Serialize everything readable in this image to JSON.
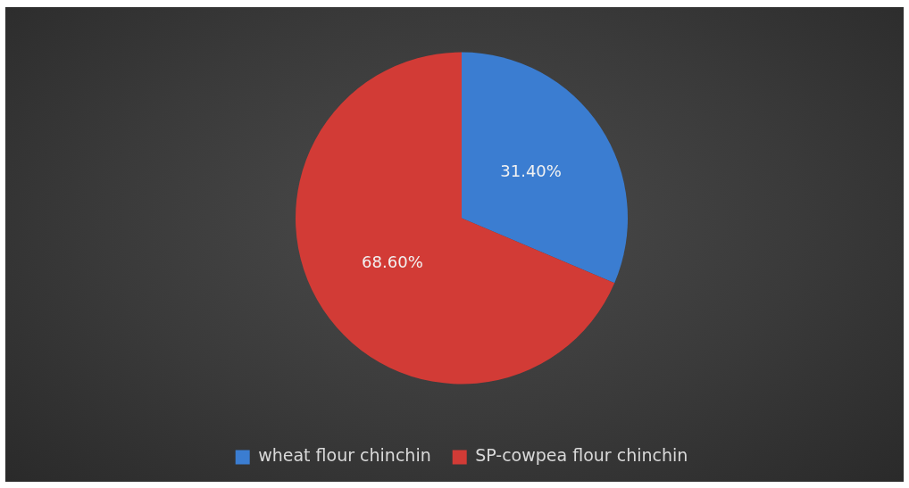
{
  "chart_data": {
    "type": "pie",
    "categories": [
      "wheat flour chinchin",
      "SP-cowpea flour chinchin"
    ],
    "values": [
      31.4,
      68.6
    ],
    "colors": [
      "#3b7dd1",
      "#d23b36"
    ],
    "value_labels": [
      "31.40%",
      "68.60%"
    ],
    "legend": "bottom"
  }
}
